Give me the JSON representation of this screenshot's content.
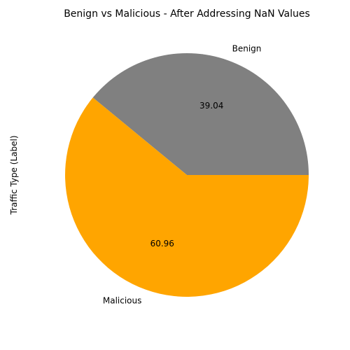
{
  "chart_data": {
    "type": "pie",
    "title": "Benign vs Malicious - After Addressing NaN Values",
    "ylabel": "Traffic Type (Label)",
    "slices": [
      {
        "label": "Benign",
        "value": 39.04,
        "pct_text": "39.04",
        "color": "#808080"
      },
      {
        "label": "Malicious",
        "value": 60.96,
        "pct_text": "60.96",
        "color": "#FFA500"
      }
    ],
    "start_angle_deg": 0,
    "direction": "counterclockwise"
  }
}
